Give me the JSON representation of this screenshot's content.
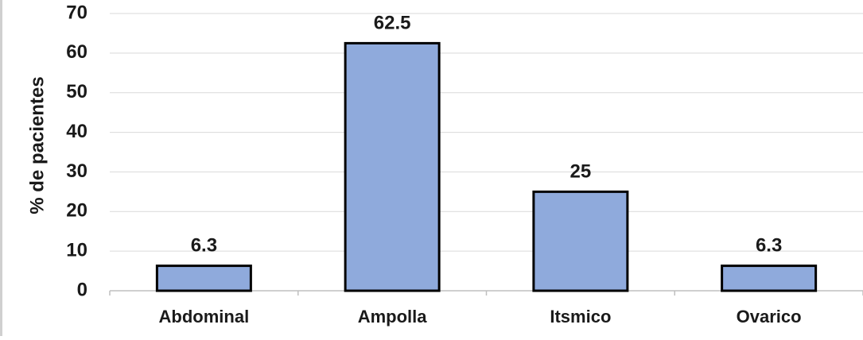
{
  "chart_data": {
    "type": "bar",
    "categories": [
      "Abdominal",
      "Ampolla",
      "Itsmico",
      "Ovarico"
    ],
    "values": [
      6.3,
      62.5,
      25,
      6.3
    ],
    "data_labels": [
      "6.3",
      "62.5",
      "25",
      "6.3"
    ],
    "title": "",
    "xlabel": "",
    "ylabel": "% de pacientes",
    "ylim": [
      0,
      70
    ],
    "yticks": [
      0,
      10,
      20,
      30,
      40,
      50,
      60,
      70
    ],
    "grid": "horizontal",
    "legend": "none",
    "colors": {
      "bar_fill": "#8faadc",
      "bar_edge": "#000000",
      "grid": "#d9d9d9",
      "axis": "#bfbfbf",
      "text": "#1a1a1a"
    }
  }
}
